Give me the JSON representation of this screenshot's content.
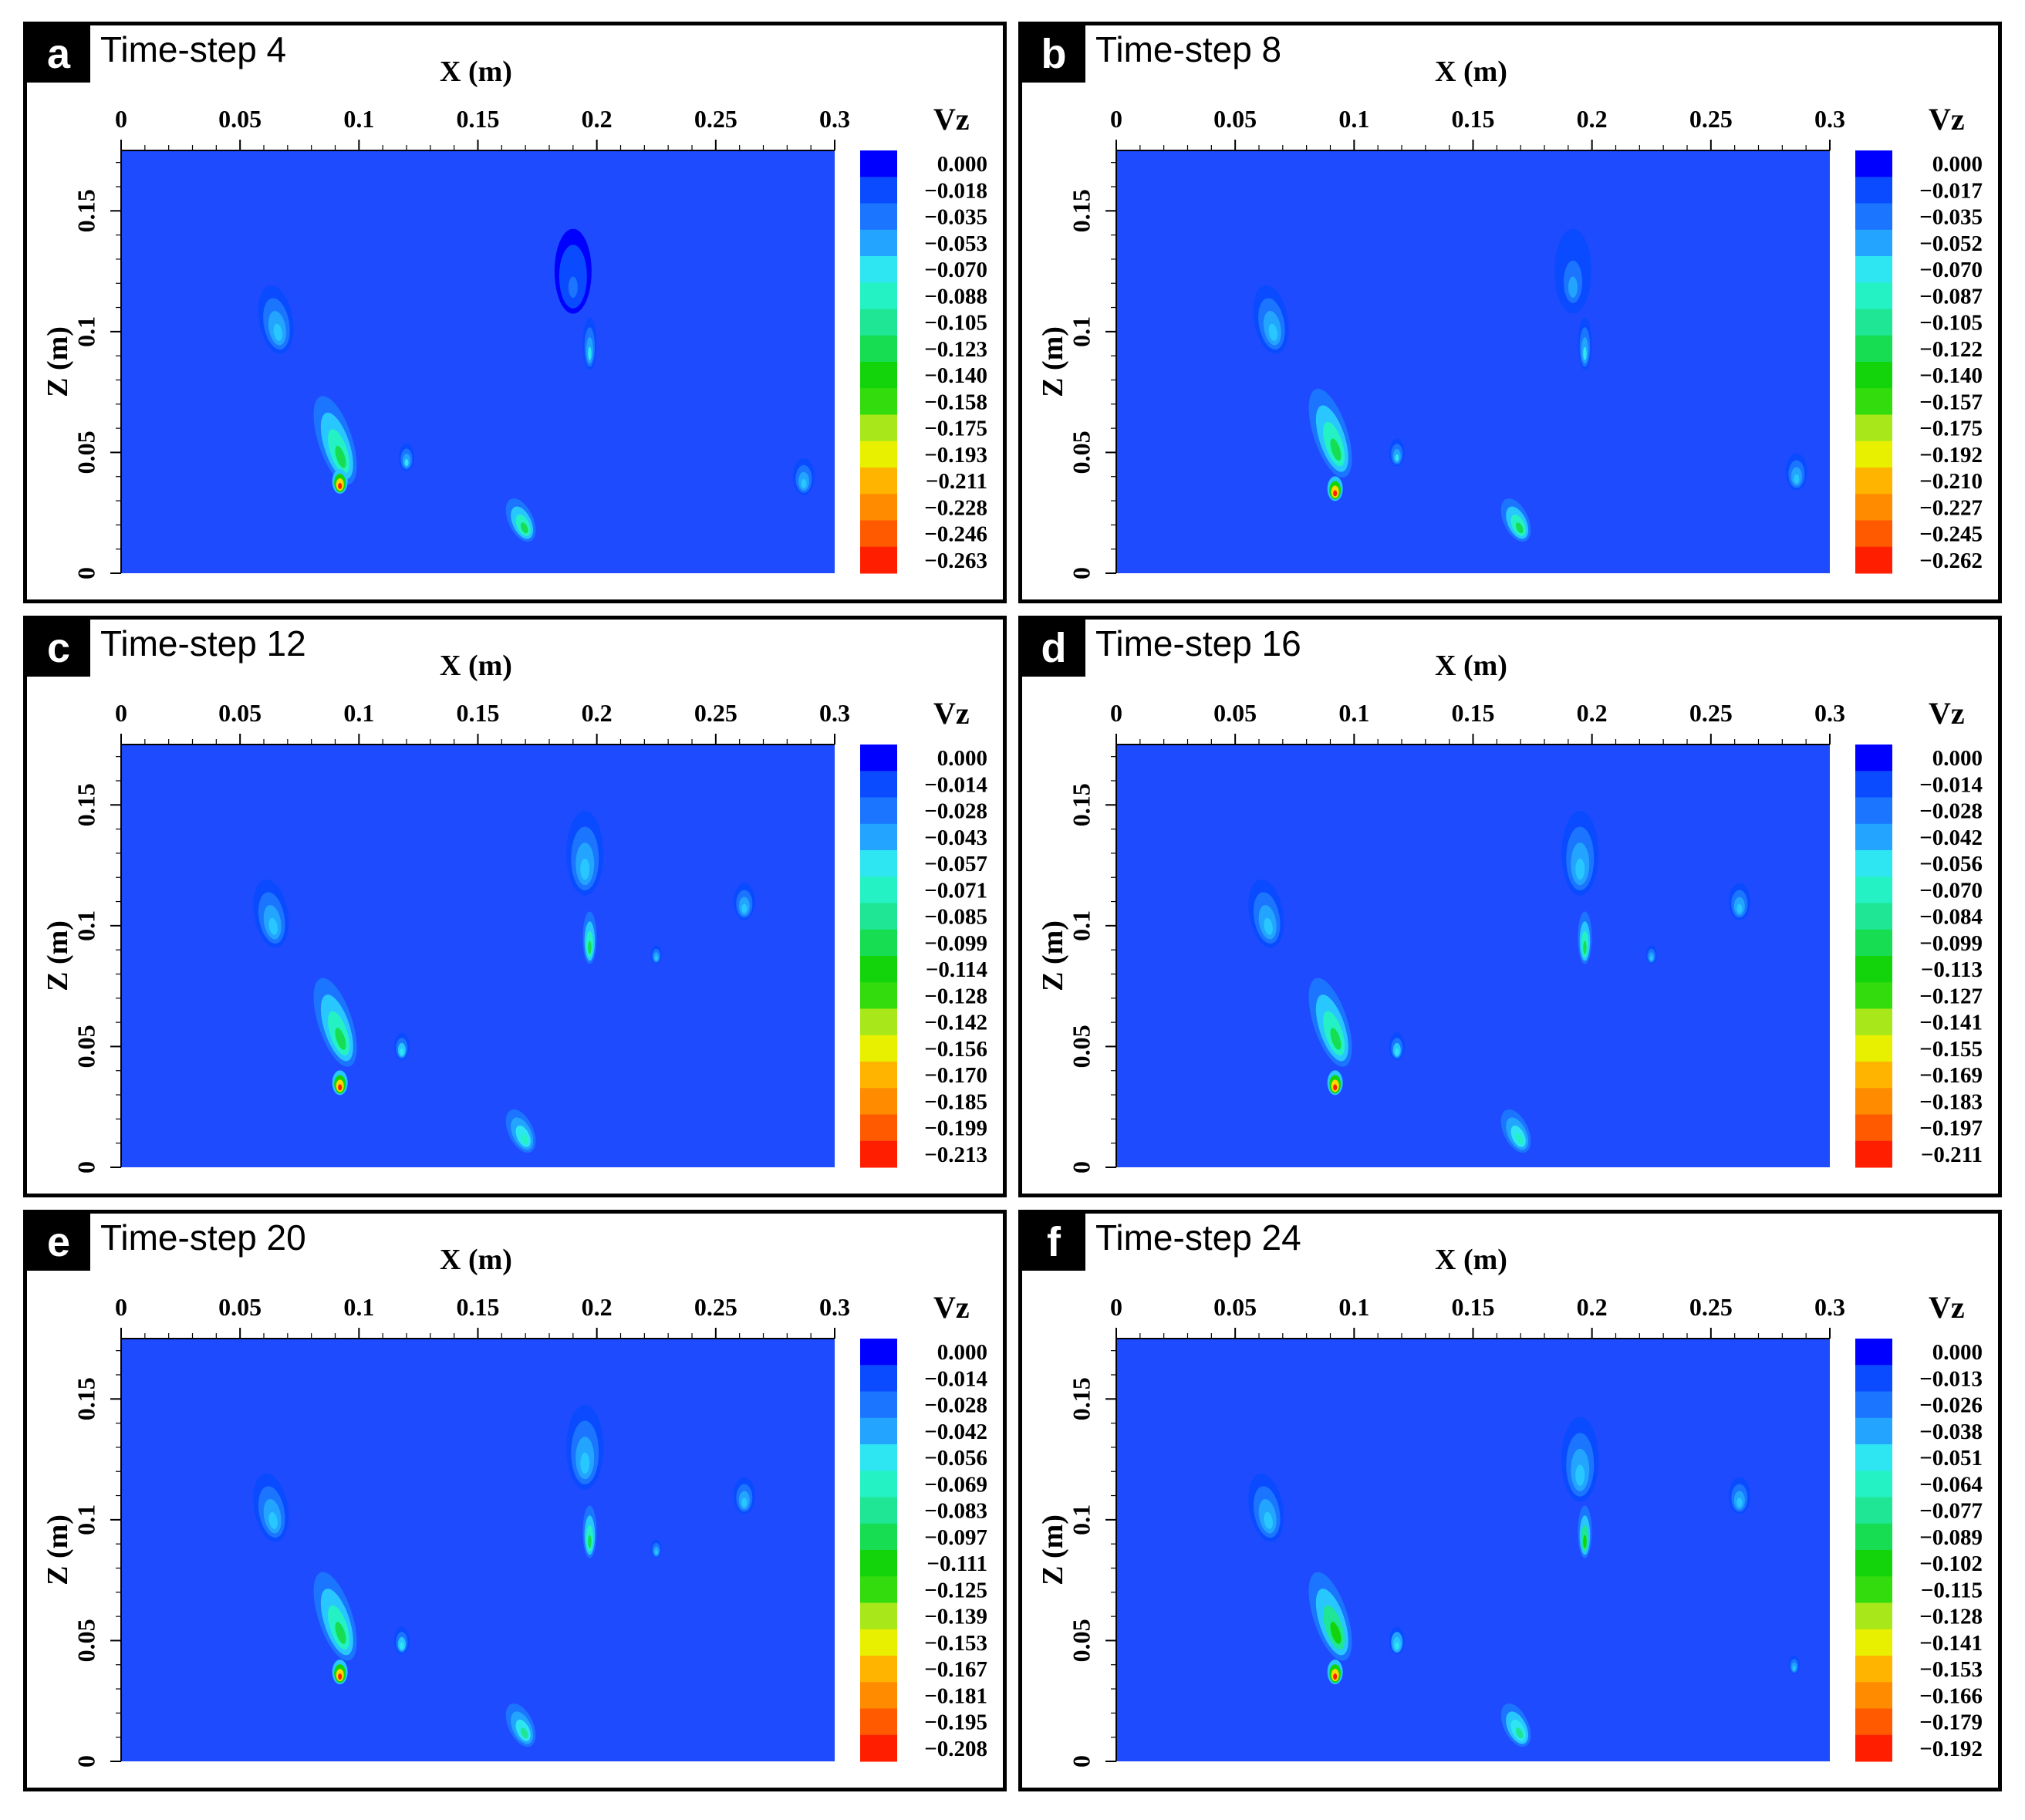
{
  "colors": {
    "background_blue": "#1f4bff",
    "ramp": [
      "#0000ff",
      "#0a4bff",
      "#1b75ff",
      "#22a4ff",
      "#28c7ff",
      "#2ee6f2",
      "#25f2c4",
      "#1ee694",
      "#17dd53",
      "#13d40a",
      "#33dd0d",
      "#a8e81a",
      "#e8f000",
      "#ffd700",
      "#ffb400",
      "#ff8c00",
      "#ff5a00",
      "#ff1f00"
    ]
  },
  "panels": [
    {
      "letter": "a",
      "title": "Time-step 4",
      "xlabel": "X (m)",
      "ylabel": "Z (m)",
      "colorbar_title": "Vz",
      "x_ticks": [
        "0",
        "0.05",
        "0.1",
        "0.15",
        "0.2",
        "0.25",
        "0.3"
      ],
      "y_ticks": [
        "0",
        "0.05",
        "0.1",
        "0.15"
      ],
      "levels": [
        "0.000",
        "−0.018",
        "−0.035",
        "−0.053",
        "−0.070",
        "−0.088",
        "−0.105",
        "−0.123",
        "−0.140",
        "−0.158",
        "−0.175",
        "−0.193",
        "−0.211",
        "−0.228",
        "−0.246",
        "−0.263"
      ]
    },
    {
      "letter": "b",
      "title": "Time-step 8",
      "xlabel": "X (m)",
      "ylabel": "Z (m)",
      "colorbar_title": "Vz",
      "x_ticks": [
        "0",
        "0.05",
        "0.1",
        "0.15",
        "0.2",
        "0.25",
        "0.3"
      ],
      "y_ticks": [
        "0",
        "0.05",
        "0.1",
        "0.15"
      ],
      "levels": [
        "0.000",
        "−0.017",
        "−0.035",
        "−0.052",
        "−0.070",
        "−0.087",
        "−0.105",
        "−0.122",
        "−0.140",
        "−0.157",
        "−0.175",
        "−0.192",
        "−0.210",
        "−0.227",
        "−0.245",
        "−0.262"
      ]
    },
    {
      "letter": "c",
      "title": "Time-step 12",
      "xlabel": "X (m)",
      "ylabel": "Z (m)",
      "colorbar_title": "Vz",
      "x_ticks": [
        "0",
        "0.05",
        "0.1",
        "0.15",
        "0.2",
        "0.25",
        "0.3"
      ],
      "y_ticks": [
        "0",
        "0.05",
        "0.1",
        "0.15"
      ],
      "levels": [
        "0.000",
        "−0.014",
        "−0.028",
        "−0.043",
        "−0.057",
        "−0.071",
        "−0.085",
        "−0.099",
        "−0.114",
        "−0.128",
        "−0.142",
        "−0.156",
        "−0.170",
        "−0.185",
        "−0.199",
        "−0.213"
      ]
    },
    {
      "letter": "d",
      "title": "Time-step 16",
      "xlabel": "X (m)",
      "ylabel": "Z (m)",
      "colorbar_title": "Vz",
      "x_ticks": [
        "0",
        "0.05",
        "0.1",
        "0.15",
        "0.2",
        "0.25",
        "0.3"
      ],
      "y_ticks": [
        "0",
        "0.05",
        "0.1",
        "0.15"
      ],
      "levels": [
        "0.000",
        "−0.014",
        "−0.028",
        "−0.042",
        "−0.056",
        "−0.070",
        "−0.084",
        "−0.099",
        "−0.113",
        "−0.127",
        "−0.141",
        "−0.155",
        "−0.169",
        "−0.183",
        "−0.197",
        "−0.211"
      ]
    },
    {
      "letter": "e",
      "title": "Time-step 20",
      "xlabel": "X (m)",
      "ylabel": "Z (m)",
      "colorbar_title": "Vz",
      "x_ticks": [
        "0",
        "0.05",
        "0.1",
        "0.15",
        "0.2",
        "0.25",
        "0.3"
      ],
      "y_ticks": [
        "0",
        "0.05",
        "0.1",
        "0.15"
      ],
      "levels": [
        "0.000",
        "−0.014",
        "−0.028",
        "−0.042",
        "−0.056",
        "−0.069",
        "−0.083",
        "−0.097",
        "−0.111",
        "−0.125",
        "−0.139",
        "−0.153",
        "−0.167",
        "−0.181",
        "−0.195",
        "−0.208"
      ]
    },
    {
      "letter": "f",
      "title": "Time-step 24",
      "xlabel": "X (m)",
      "ylabel": "Z (m)",
      "colorbar_title": "Vz",
      "x_ticks": [
        "0",
        "0.05",
        "0.1",
        "0.15",
        "0.2",
        "0.25",
        "0.3"
      ],
      "y_ticks": [
        "0",
        "0.05",
        "0.1",
        "0.15"
      ],
      "levels": [
        "0.000",
        "−0.013",
        "−0.026",
        "−0.038",
        "−0.051",
        "−0.064",
        "−0.077",
        "−0.089",
        "−0.102",
        "−0.115",
        "−0.128",
        "−0.141",
        "−0.153",
        "−0.166",
        "−0.179",
        "−0.192"
      ]
    }
  ],
  "chart_data": [
    {
      "type": "heatmap",
      "title": "Time-step 4",
      "xlabel": "X (m)",
      "ylabel": "Z (m)",
      "xlim": [
        0,
        0.3
      ],
      "ylim": [
        0,
        0.175
      ],
      "colorbar_label": "Vz",
      "colorbar_range": [
        -0.263,
        0.0
      ],
      "features": [
        {
          "x": 0.065,
          "z": 0.105,
          "vz": -0.06
        },
        {
          "x": 0.09,
          "z": 0.055,
          "vz": -0.12
        },
        {
          "x": 0.092,
          "z": 0.038,
          "vz": -0.263
        },
        {
          "x": 0.12,
          "z": 0.048,
          "vz": -0.07
        },
        {
          "x": 0.19,
          "z": 0.125,
          "vz": -0.03
        },
        {
          "x": 0.197,
          "z": 0.095,
          "vz": -0.07
        },
        {
          "x": 0.168,
          "z": 0.022,
          "vz": -0.12
        },
        {
          "x": 0.287,
          "z": 0.04,
          "vz": -0.06
        }
      ]
    },
    {
      "type": "heatmap",
      "title": "Time-step 8",
      "xlabel": "X (m)",
      "ylabel": "Z (m)",
      "xlim": [
        0,
        0.3
      ],
      "ylim": [
        0,
        0.175
      ],
      "colorbar_label": "Vz",
      "colorbar_range": [
        -0.262,
        0.0
      ],
      "features": [
        {
          "x": 0.065,
          "z": 0.105,
          "vz": -0.06
        },
        {
          "x": 0.09,
          "z": 0.058,
          "vz": -0.12
        },
        {
          "x": 0.092,
          "z": 0.035,
          "vz": -0.262
        },
        {
          "x": 0.118,
          "z": 0.05,
          "vz": -0.07
        },
        {
          "x": 0.192,
          "z": 0.125,
          "vz": -0.04
        },
        {
          "x": 0.197,
          "z": 0.095,
          "vz": -0.07
        },
        {
          "x": 0.168,
          "z": 0.022,
          "vz": -0.12
        },
        {
          "x": 0.286,
          "z": 0.042,
          "vz": -0.06
        }
      ]
    },
    {
      "type": "heatmap",
      "title": "Time-step 12",
      "xlabel": "X (m)",
      "ylabel": "Z (m)",
      "xlim": [
        0,
        0.3
      ],
      "ylim": [
        0,
        0.175
      ],
      "colorbar_label": "Vz",
      "colorbar_range": [
        -0.213,
        0.0
      ],
      "features": [
        {
          "x": 0.063,
          "z": 0.105,
          "vz": -0.05
        },
        {
          "x": 0.09,
          "z": 0.06,
          "vz": -0.1
        },
        {
          "x": 0.092,
          "z": 0.035,
          "vz": -0.213
        },
        {
          "x": 0.118,
          "z": 0.05,
          "vz": -0.06
        },
        {
          "x": 0.195,
          "z": 0.13,
          "vz": -0.05
        },
        {
          "x": 0.197,
          "z": 0.095,
          "vz": -0.1
        },
        {
          "x": 0.168,
          "z": 0.015,
          "vz": -0.08
        },
        {
          "x": 0.262,
          "z": 0.11,
          "vz": -0.05
        },
        {
          "x": 0.225,
          "z": 0.088,
          "vz": -0.05
        }
      ]
    },
    {
      "type": "heatmap",
      "title": "Time-step 16",
      "xlabel": "X (m)",
      "ylabel": "Z (m)",
      "xlim": [
        0,
        0.3
      ],
      "ylim": [
        0,
        0.175
      ],
      "colorbar_label": "Vz",
      "colorbar_range": [
        -0.211,
        0.0
      ],
      "features": [
        {
          "x": 0.063,
          "z": 0.105,
          "vz": -0.05
        },
        {
          "x": 0.09,
          "z": 0.06,
          "vz": -0.1
        },
        {
          "x": 0.092,
          "z": 0.035,
          "vz": -0.211
        },
        {
          "x": 0.118,
          "z": 0.05,
          "vz": -0.06
        },
        {
          "x": 0.195,
          "z": 0.13,
          "vz": -0.05
        },
        {
          "x": 0.197,
          "z": 0.095,
          "vz": -0.1
        },
        {
          "x": 0.168,
          "z": 0.015,
          "vz": -0.08
        },
        {
          "x": 0.262,
          "z": 0.11,
          "vz": -0.05
        },
        {
          "x": 0.225,
          "z": 0.088,
          "vz": -0.05
        }
      ]
    },
    {
      "type": "heatmap",
      "title": "Time-step 20",
      "xlabel": "X (m)",
      "ylabel": "Z (m)",
      "xlim": [
        0,
        0.3
      ],
      "ylim": [
        0,
        0.175
      ],
      "colorbar_label": "Vz",
      "colorbar_range": [
        -0.208,
        0.0
      ],
      "features": [
        {
          "x": 0.063,
          "z": 0.105,
          "vz": -0.05
        },
        {
          "x": 0.09,
          "z": 0.06,
          "vz": -0.1
        },
        {
          "x": 0.092,
          "z": 0.037,
          "vz": -0.208
        },
        {
          "x": 0.118,
          "z": 0.05,
          "vz": -0.06
        },
        {
          "x": 0.195,
          "z": 0.13,
          "vz": -0.05
        },
        {
          "x": 0.197,
          "z": 0.095,
          "vz": -0.1
        },
        {
          "x": 0.168,
          "z": 0.015,
          "vz": -0.08
        },
        {
          "x": 0.262,
          "z": 0.11,
          "vz": -0.05
        },
        {
          "x": 0.225,
          "z": 0.088,
          "vz": -0.05
        }
      ]
    },
    {
      "type": "heatmap",
      "title": "Time-step 24",
      "xlabel": "X (m)",
      "ylabel": "Z (m)",
      "xlim": [
        0,
        0.3
      ],
      "ylim": [
        0,
        0.175
      ],
      "colorbar_label": "Vz",
      "colorbar_range": [
        -0.192,
        0.0
      ],
      "features": [
        {
          "x": 0.063,
          "z": 0.105,
          "vz": -0.05
        },
        {
          "x": 0.09,
          "z": 0.06,
          "vz": -0.1
        },
        {
          "x": 0.092,
          "z": 0.037,
          "vz": -0.192
        },
        {
          "x": 0.118,
          "z": 0.05,
          "vz": -0.06
        },
        {
          "x": 0.195,
          "z": 0.125,
          "vz": -0.05
        },
        {
          "x": 0.197,
          "z": 0.095,
          "vz": -0.1
        },
        {
          "x": 0.168,
          "z": 0.015,
          "vz": -0.08
        },
        {
          "x": 0.262,
          "z": 0.11,
          "vz": -0.05
        },
        {
          "x": 0.285,
          "z": 0.04,
          "vz": -0.05
        }
      ]
    }
  ]
}
